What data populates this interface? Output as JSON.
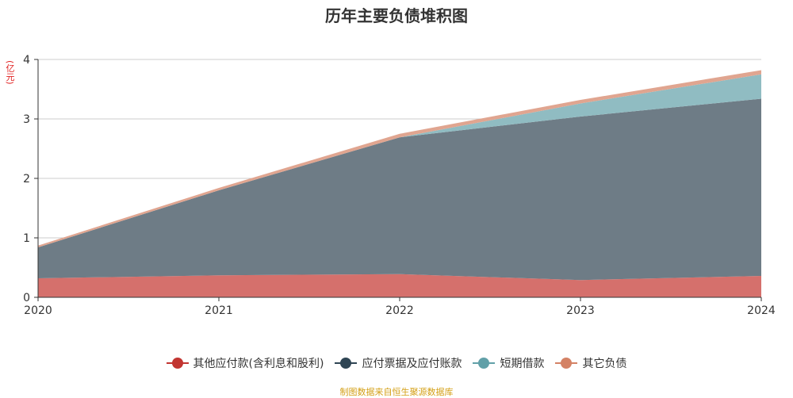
{
  "chart_data": {
    "type": "area",
    "stacked": true,
    "title": "历年主要负债堆积图",
    "ylabel": "(亿元)",
    "categories": [
      "2020",
      "2021",
      "2022",
      "2023",
      "2024"
    ],
    "ylim": [
      0,
      4
    ],
    "yticks": [
      0,
      1,
      2,
      3,
      4
    ],
    "grid": true,
    "legend_position": "bottom",
    "series": [
      {
        "name": "其他应付款(含利息和股利)",
        "color": "#c23531",
        "fill": "#d5706c",
        "values": [
          0.32,
          0.37,
          0.39,
          0.29,
          0.36
        ]
      },
      {
        "name": "应付票据及应付账款",
        "color": "#2f4554",
        "fill": "#6e7c86",
        "values": [
          0.52,
          1.43,
          2.3,
          2.75,
          2.98
        ]
      },
      {
        "name": "短期借款",
        "color": "#61a0a8",
        "fill": "#90bcc2",
        "values": [
          0.0,
          0.0,
          0.0,
          0.22,
          0.41
        ]
      },
      {
        "name": "其它负债",
        "color": "#d48265",
        "fill": "#e0a590",
        "values": [
          0.03,
          0.04,
          0.06,
          0.06,
          0.07
        ]
      }
    ]
  },
  "source": "制图数据来自恒生聚源数据库"
}
